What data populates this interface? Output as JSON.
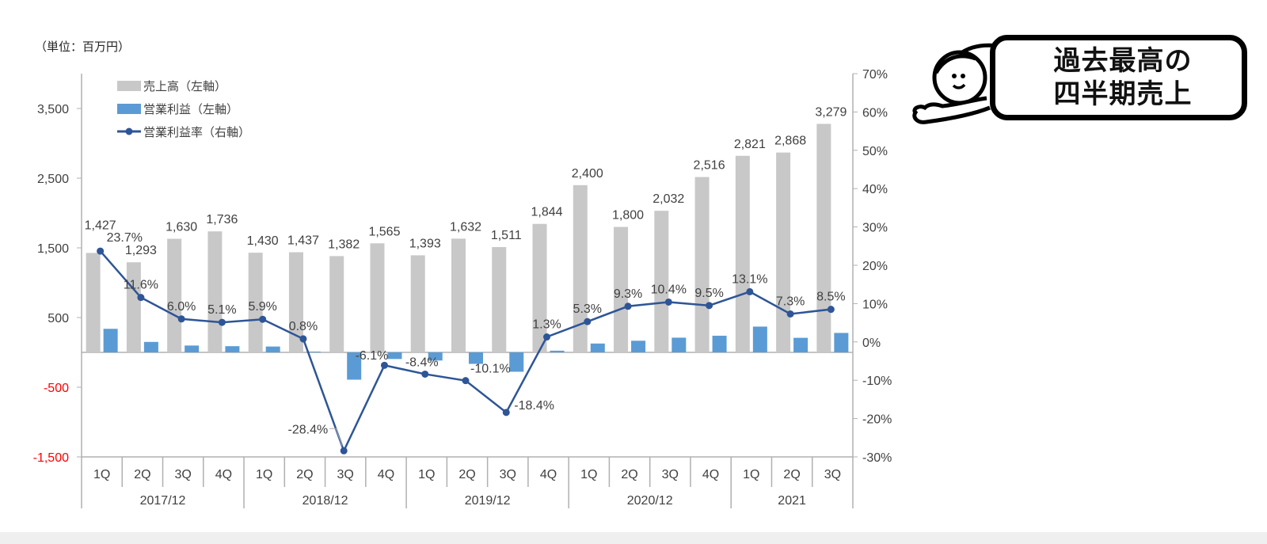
{
  "unit_label": "（単位：百万円）",
  "callout": {
    "line1": "過去最高の",
    "line2": "四半期売上",
    "mascot_icon": "girl-pointing-icon"
  },
  "colors": {
    "sales": "#c8c8c8",
    "operating_profit": "#5b9bd5",
    "margin_line": "#2e5597",
    "axis": "#b0b0b0",
    "negative_tick": "#ff0000",
    "text": "#404040"
  },
  "chart_data": {
    "type": "bar",
    "title": "",
    "xlabel": "",
    "ylabel_left": "百万円",
    "ylabel_right": "営業利益率",
    "categories": [
      "1Q",
      "2Q",
      "3Q",
      "4Q",
      "1Q",
      "2Q",
      "3Q",
      "4Q",
      "1Q",
      "2Q",
      "3Q",
      "4Q",
      "1Q",
      "2Q",
      "3Q",
      "4Q",
      "1Q",
      "2Q",
      "3Q"
    ],
    "groups": [
      {
        "label": "2017/12",
        "count": 4
      },
      {
        "label": "2018/12",
        "count": 4
      },
      {
        "label": "2019/12",
        "count": 4
      },
      {
        "label": "2020/12",
        "count": 4
      },
      {
        "label": "2021",
        "count": 3
      }
    ],
    "series": [
      {
        "name": "売上高（左軸）",
        "type": "bar",
        "axis": "left",
        "values": [
          1427,
          1293,
          1630,
          1736,
          1430,
          1437,
          1382,
          1565,
          1393,
          1632,
          1511,
          1844,
          2400,
          1800,
          2032,
          2516,
          2821,
          2868,
          3279
        ],
        "labels": [
          "1,427",
          "1,293",
          "1,630",
          "1,736",
          "1,430",
          "1,437",
          "1,382",
          "1,565",
          "1,393",
          "1,632",
          "1,511",
          "1,844",
          "2,400",
          "1,800",
          "2,032",
          "2,516",
          "2,821",
          "2,868",
          "3,279"
        ]
      },
      {
        "name": "営業利益（左軸）",
        "type": "bar",
        "axis": "left",
        "values": [
          338,
          150,
          98,
          89,
          84,
          11,
          -392,
          -95,
          -117,
          -165,
          -278,
          24,
          127,
          167,
          211,
          239,
          370,
          209,
          279
        ]
      },
      {
        "name": "営業利益率（右軸）",
        "type": "line",
        "axis": "right",
        "values": [
          23.7,
          11.6,
          6.0,
          5.1,
          5.9,
          0.8,
          -28.4,
          -6.1,
          -8.4,
          -10.1,
          -18.4,
          1.3,
          5.3,
          9.3,
          10.4,
          9.5,
          13.1,
          7.3,
          8.5
        ],
        "labels": [
          "23.7%",
          "11.6%",
          "6.0%",
          "5.1%",
          "5.9%",
          "0.8%",
          "-28.4%",
          "-6.1%",
          "-8.4%",
          "-10.1%",
          "-18.4%",
          "1.3%",
          "5.3%",
          "9.3%",
          "10.4%",
          "9.5%",
          "13.1%",
          "7.3%",
          "8.5%"
        ]
      }
    ],
    "left_axis": {
      "min": -1500,
      "max": 4000,
      "ticks": [
        3500,
        2500,
        1500,
        500,
        -500,
        -1500
      ],
      "tick_labels": [
        "3,500",
        "2,500",
        "1,500",
        "500",
        "-500",
        "-1,500"
      ]
    },
    "right_axis": {
      "min": -30,
      "max": 70,
      "ticks": [
        70,
        60,
        50,
        40,
        30,
        20,
        10,
        0,
        -10,
        -20,
        -30
      ],
      "tick_labels": [
        "70%",
        "60%",
        "50%",
        "40%",
        "30%",
        "20%",
        "10%",
        "0%",
        "-10%",
        "-20%",
        "-30%"
      ]
    },
    "legend": {
      "position": "top-left",
      "entries": [
        "売上高（左軸）",
        "営業利益（左軸）",
        "営業利益率（右軸）"
      ]
    },
    "grid": false
  }
}
